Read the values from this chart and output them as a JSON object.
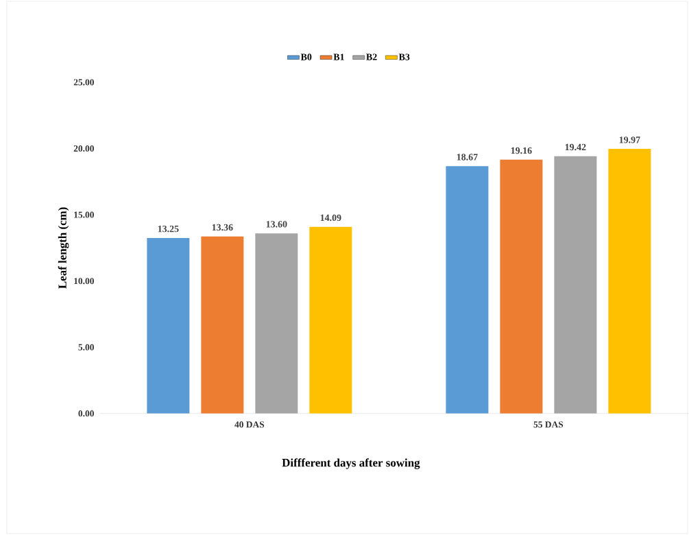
{
  "chart_data": {
    "type": "bar",
    "xlabel": "Diffferent days after sowing",
    "ylabel": "Leaf length (cm)",
    "categories": [
      "40 DAS",
      "55 DAS"
    ],
    "series": [
      {
        "name": "B0",
        "color": "#5b9bd5",
        "values": [
          13.25,
          18.67
        ],
        "value_labels": [
          "13.25",
          "18.67"
        ]
      },
      {
        "name": "B1",
        "color": "#ed7d31",
        "values": [
          13.36,
          19.16
        ],
        "value_labels": [
          "13.36",
          "19.16"
        ]
      },
      {
        "name": "B2",
        "color": "#a5a5a5",
        "values": [
          13.6,
          19.42
        ],
        "value_labels": [
          "13.60",
          "19.42"
        ]
      },
      {
        "name": "B3",
        "color": "#ffc000",
        "values": [
          14.09,
          19.97
        ],
        "value_labels": [
          "14.09",
          "19.97"
        ]
      }
    ],
    "ylim": [
      0,
      25
    ],
    "yticks": [
      {
        "value": 0,
        "label": "0.00"
      },
      {
        "value": 5,
        "label": "5.00"
      },
      {
        "value": 10,
        "label": "10.00"
      },
      {
        "value": 15,
        "label": "15.00"
      },
      {
        "value": 20,
        "label": "20.00"
      },
      {
        "value": 25,
        "label": "25.00"
      }
    ],
    "legend": "top",
    "grid": false
  }
}
